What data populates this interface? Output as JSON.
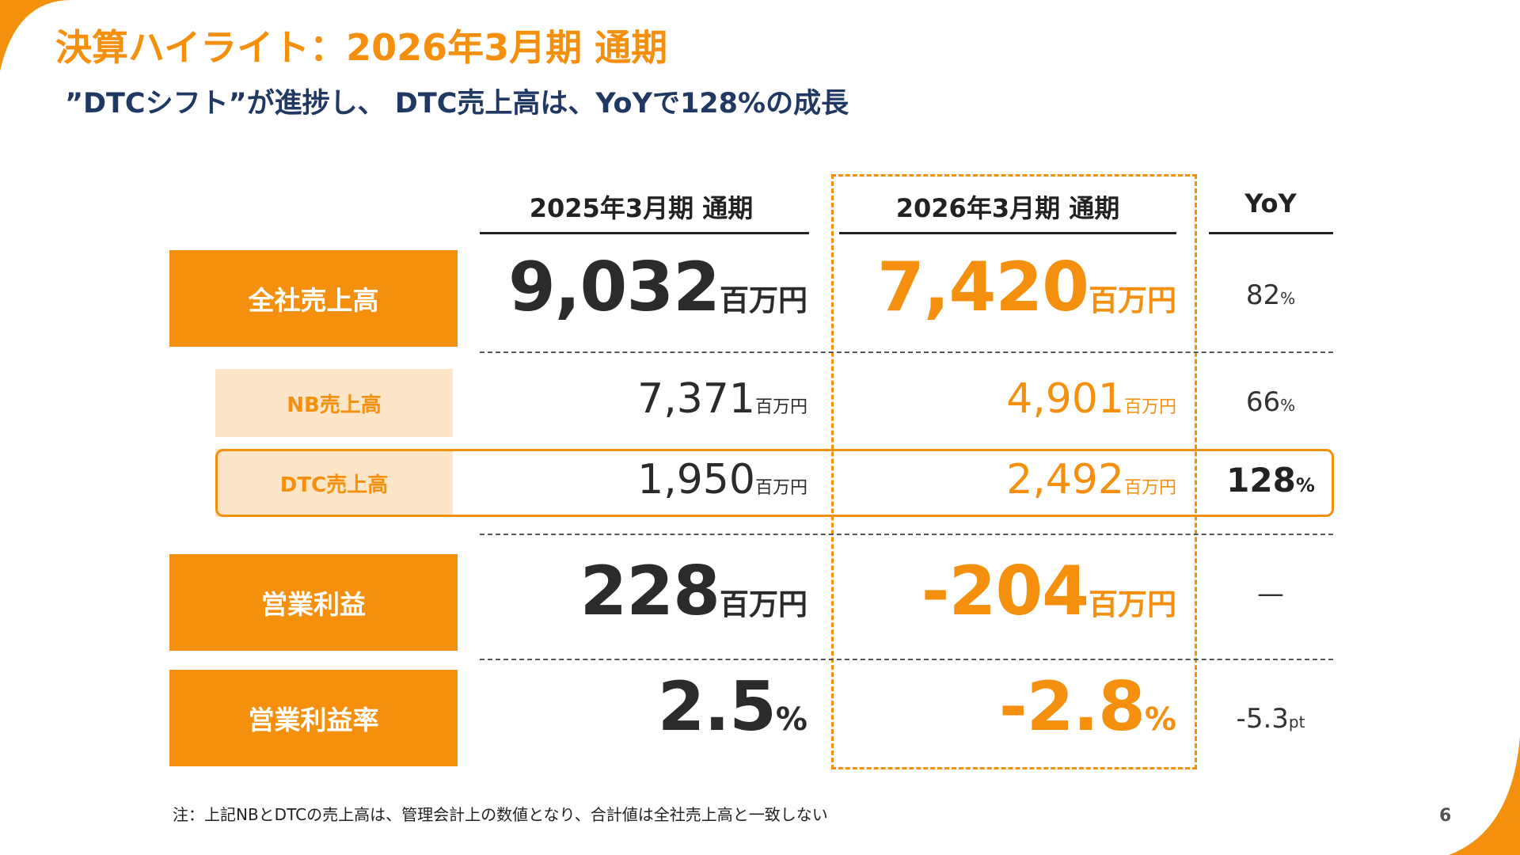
{
  "header": {
    "title": "決算ハイライト：2026年3月期 通期",
    "subtitle": "”DTCシフト”が進捗し、 DTC売上高は、YoYで128%の成長"
  },
  "columns": {
    "prev": "2025年3月期 通期",
    "curr": "2026年3月期 通期",
    "yoy": "YoY"
  },
  "rows": {
    "total_sales": {
      "label": "全社売上高",
      "prev_value": "9,032",
      "prev_unit": "百万円",
      "curr_value": "7,420",
      "curr_unit": "百万円",
      "yoy_value": "82",
      "yoy_unit": "%"
    },
    "nb_sales": {
      "label": "NB売上高",
      "prev_value": "7,371",
      "prev_unit": "百万円",
      "curr_value": "4,901",
      "curr_unit": "百万円",
      "yoy_value": "66",
      "yoy_unit": "%"
    },
    "dtc_sales": {
      "label": "DTC売上高",
      "prev_value": "1,950",
      "prev_unit": "百万円",
      "curr_value": "2,492",
      "curr_unit": "百万円",
      "yoy_value": "128",
      "yoy_unit": "%"
    },
    "operating_profit": {
      "label": "営業利益",
      "prev_value": "228",
      "prev_unit": "百万円",
      "curr_value": "-204",
      "curr_unit": "百万円",
      "yoy_value": "—"
    },
    "operating_margin": {
      "label": "営業利益率",
      "prev_value": "2.5",
      "prev_unit": "%",
      "curr_value": "-2.8",
      "curr_unit": "%",
      "yoy_value": "-5.3",
      "yoy_unit": "pt"
    }
  },
  "footer": {
    "note": "注：上記NBとDTCの売上高は、管理会計上の数値となり、合計値は全社売上高と一致しない",
    "page_number": "6"
  },
  "colors": {
    "accent": "#f5900f",
    "accent_light": "#fde5c8",
    "navy": "#1f3864"
  }
}
